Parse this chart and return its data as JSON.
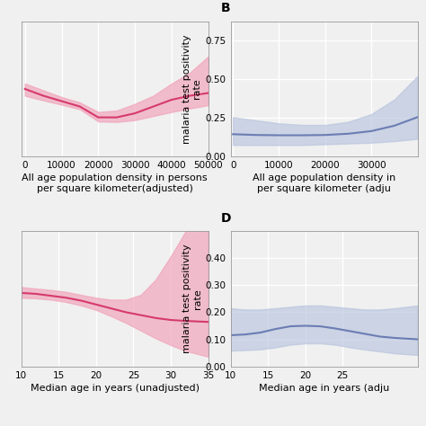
{
  "panel_A": {
    "label": "",
    "x": [
      0,
      5000,
      10000,
      15000,
      20000,
      25000,
      30000,
      35000,
      40000,
      45000,
      50000
    ],
    "y": [
      0.3,
      0.275,
      0.255,
      0.235,
      0.195,
      0.195,
      0.21,
      0.235,
      0.26,
      0.275,
      0.285
    ],
    "y_upper": [
      0.32,
      0.295,
      0.27,
      0.25,
      0.215,
      0.22,
      0.245,
      0.275,
      0.32,
      0.36,
      0.42
    ],
    "y_lower": [
      0.275,
      0.258,
      0.242,
      0.225,
      0.18,
      0.178,
      0.185,
      0.2,
      0.215,
      0.228,
      0.24
    ],
    "line_color": "#d63a6e",
    "fill_color": "#f0a0b8",
    "xlabel": "All age population density in persons\nper square kilometer(adjusted)",
    "ylabel": "",
    "xlim": [
      -1000,
      50000
    ],
    "ylim": [
      0.05,
      0.55
    ],
    "xticks": [
      0,
      10000,
      20000,
      30000,
      40000,
      50000
    ],
    "yticks": [],
    "show_ytick_labels": false
  },
  "panel_B": {
    "label": "B",
    "x": [
      0,
      5000,
      10000,
      15000,
      20000,
      25000,
      30000,
      35000,
      40000
    ],
    "y": [
      0.145,
      0.14,
      0.138,
      0.138,
      0.14,
      0.148,
      0.165,
      0.2,
      0.255
    ],
    "y_upper": [
      0.255,
      0.235,
      0.215,
      0.205,
      0.205,
      0.225,
      0.275,
      0.37,
      0.52
    ],
    "y_lower": [
      0.075,
      0.075,
      0.075,
      0.075,
      0.08,
      0.085,
      0.09,
      0.1,
      0.115
    ],
    "line_color": "#6b7db3",
    "fill_color": "#b8c4de",
    "xlabel": "All age population density in\nper square kilometer (adju",
    "ylabel": "malaria test positivity\nrate",
    "xlim": [
      -500,
      40000
    ],
    "ylim": [
      0.0,
      0.875
    ],
    "xticks": [
      0,
      10000,
      20000,
      30000
    ],
    "yticks": [
      0.0,
      0.25,
      0.5,
      0.75
    ],
    "show_ytick_labels": true
  },
  "panel_C": {
    "label": "",
    "x": [
      10,
      12,
      14,
      16,
      18,
      20,
      22,
      24,
      26,
      28,
      30,
      32,
      35
    ],
    "y": [
      0.33,
      0.325,
      0.315,
      0.305,
      0.29,
      0.27,
      0.25,
      0.23,
      0.215,
      0.2,
      0.19,
      0.185,
      0.18
    ],
    "y_upper": [
      0.36,
      0.352,
      0.345,
      0.335,
      0.32,
      0.305,
      0.295,
      0.295,
      0.32,
      0.4,
      0.52,
      0.65,
      0.8
    ],
    "y_lower": [
      0.305,
      0.302,
      0.295,
      0.283,
      0.265,
      0.242,
      0.21,
      0.175,
      0.135,
      0.095,
      0.06,
      0.03,
      0.0
    ],
    "line_color": "#d63a6e",
    "fill_color": "#f0a0b8",
    "xlabel": "Median age in years (unadjusted)",
    "ylabel": "",
    "xlim": [
      10,
      35
    ],
    "ylim": [
      -0.05,
      0.65
    ],
    "xticks": [
      10,
      15,
      20,
      25,
      30,
      35
    ],
    "yticks": [],
    "show_ytick_labels": false
  },
  "panel_D": {
    "label": "D",
    "x": [
      10,
      12,
      14,
      16,
      18,
      20,
      22,
      24,
      26,
      28,
      30,
      32,
      35
    ],
    "y": [
      0.115,
      0.118,
      0.125,
      0.138,
      0.148,
      0.15,
      0.148,
      0.14,
      0.13,
      0.12,
      0.11,
      0.105,
      0.1
    ],
    "y_upper": [
      0.215,
      0.21,
      0.21,
      0.215,
      0.22,
      0.225,
      0.225,
      0.22,
      0.215,
      0.21,
      0.21,
      0.215,
      0.225
    ],
    "y_lower": [
      0.058,
      0.06,
      0.063,
      0.07,
      0.08,
      0.085,
      0.085,
      0.08,
      0.07,
      0.062,
      0.055,
      0.048,
      0.042
    ],
    "line_color": "#6b7db3",
    "fill_color": "#b8c4de",
    "xlabel": "Median age in years (adju",
    "ylabel": "malaria test positivity\nrate",
    "xlim": [
      10,
      35
    ],
    "ylim": [
      0.0,
      0.5
    ],
    "xticks": [
      10,
      15,
      20,
      25
    ],
    "yticks": [
      0.0,
      0.1,
      0.2,
      0.3,
      0.4
    ],
    "show_ytick_labels": true
  },
  "bg_color": "#f0f0f0",
  "plot_bg_color": "#f0f0f0",
  "grid_color": "#ffffff",
  "tick_fontsize": 7.5,
  "axis_label_fontsize": 8,
  "panel_label_fontsize": 10
}
